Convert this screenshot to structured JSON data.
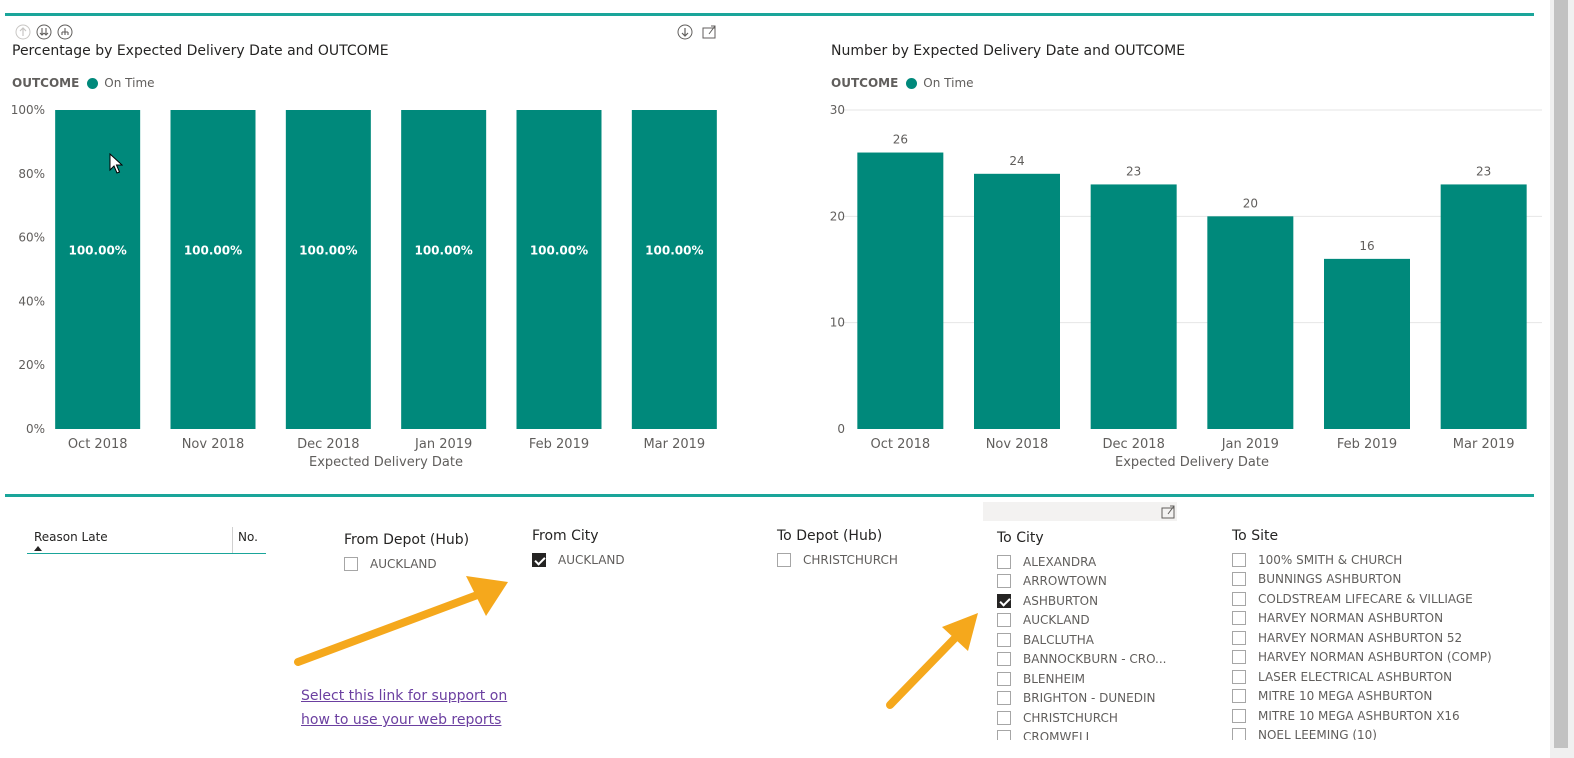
{
  "charts": [
    {
      "title": "Percentage by Expected Delivery Date and OUTCOME",
      "legend_title": "OUTCOME",
      "legend_items": [
        {
          "name": "On Time",
          "color": "#00897b"
        }
      ]
    },
    {
      "title": "Number by Expected Delivery Date and OUTCOME",
      "legend_title": "OUTCOME",
      "legend_items": [
        {
          "name": "On Time",
          "color": "#00897b"
        }
      ]
    }
  ],
  "chart_data": [
    {
      "type": "bar",
      "title": "Percentage by Expected Delivery Date and OUTCOME",
      "categories": [
        "Oct 2018",
        "Nov 2018",
        "Dec 2018",
        "Jan 2019",
        "Feb 2019",
        "Mar 2019"
      ],
      "series": [
        {
          "name": "On Time",
          "values": [
            100,
            100,
            100,
            100,
            100,
            100
          ],
          "color": "#00897b"
        }
      ],
      "data_labels": [
        "100.00%",
        "100.00%",
        "100.00%",
        "100.00%",
        "100.00%",
        "100.00%"
      ],
      "yticks": [
        "0%",
        "20%",
        "40%",
        "60%",
        "80%",
        "100%"
      ],
      "ylim": [
        0,
        100
      ],
      "xlabel": "Expected Delivery Date",
      "ylabel": "",
      "legend_title": "OUTCOME",
      "legend_position": "top-left",
      "grid": false
    },
    {
      "type": "bar",
      "title": "Number by Expected Delivery Date and OUTCOME",
      "categories": [
        "Oct 2018",
        "Nov 2018",
        "Dec 2018",
        "Jan 2019",
        "Feb 2019",
        "Mar 2019"
      ],
      "series": [
        {
          "name": "On Time",
          "values": [
            26,
            24,
            23,
            20,
            16,
            23
          ],
          "color": "#00897b"
        }
      ],
      "data_labels": [
        "26",
        "24",
        "23",
        "20",
        "16",
        "23"
      ],
      "yticks": [
        "0",
        "10",
        "20",
        "30"
      ],
      "ylim": [
        0,
        30
      ],
      "xlabel": "Expected Delivery Date",
      "ylabel": "",
      "legend_title": "OUTCOME",
      "legend_position": "top-left",
      "grid": true
    }
  ],
  "table": {
    "columns": [
      "Reason Late",
      "No."
    ]
  },
  "slicers": {
    "from_depot": {
      "title": "From Depot (Hub)",
      "items": [
        {
          "label": "AUCKLAND",
          "checked": false
        }
      ]
    },
    "from_city": {
      "title": "From City",
      "items": [
        {
          "label": "AUCKLAND",
          "checked": true
        }
      ]
    },
    "to_depot": {
      "title": "To Depot (Hub)",
      "items": [
        {
          "label": "CHRISTCHURCH",
          "checked": false
        }
      ]
    },
    "to_city": {
      "title": "To City",
      "items": [
        {
          "label": "ALEXANDRA",
          "checked": false
        },
        {
          "label": "ARROWTOWN",
          "checked": false
        },
        {
          "label": "ASHBURTON",
          "checked": true
        },
        {
          "label": "AUCKLAND",
          "checked": false
        },
        {
          "label": "BALCLUTHA",
          "checked": false
        },
        {
          "label": "BANNOCKBURN - CRO...",
          "checked": false
        },
        {
          "label": "BLENHEIM",
          "checked": false
        },
        {
          "label": "BRIGHTON - DUNEDIN",
          "checked": false
        },
        {
          "label": "CHRISTCHURCH",
          "checked": false
        },
        {
          "label": "CROMWELL",
          "checked": false
        }
      ]
    },
    "to_site": {
      "title": "To Site",
      "items": [
        {
          "label": "100% SMITH & CHURCH",
          "checked": false
        },
        {
          "label": "BUNNINGS ASHBURTON",
          "checked": false
        },
        {
          "label": "COLDSTREAM LIFECARE & VILLIAGE",
          "checked": false
        },
        {
          "label": "HARVEY NORMAN ASHBURTON",
          "checked": false
        },
        {
          "label": "HARVEY NORMAN ASHBURTON 52",
          "checked": false
        },
        {
          "label": "HARVEY NORMAN ASHBURTON (COMP)",
          "checked": false
        },
        {
          "label": "LASER ELECTRICAL ASHBURTON",
          "checked": false
        },
        {
          "label": "MITRE 10 MEGA ASHBURTON",
          "checked": false
        },
        {
          "label": "MITRE 10 MEGA ASHBURTON X16",
          "checked": false
        },
        {
          "label": "NOEL LEEMING (10)",
          "checked": false
        }
      ]
    }
  },
  "support_link": {
    "line1": "Select this link for support on",
    "line2": "how to use your web reports"
  },
  "colors": {
    "accent": "#1aa59a",
    "bar": "#00897b",
    "arrow": "#f5a81c",
    "link": "#6b3fa0"
  },
  "icons": [
    "drill-up-icon",
    "drill-down-level-icon",
    "expand-hierarchy-icon",
    "drill-down-icon",
    "focus-mode-icon",
    "mouse-cursor-icon"
  ]
}
